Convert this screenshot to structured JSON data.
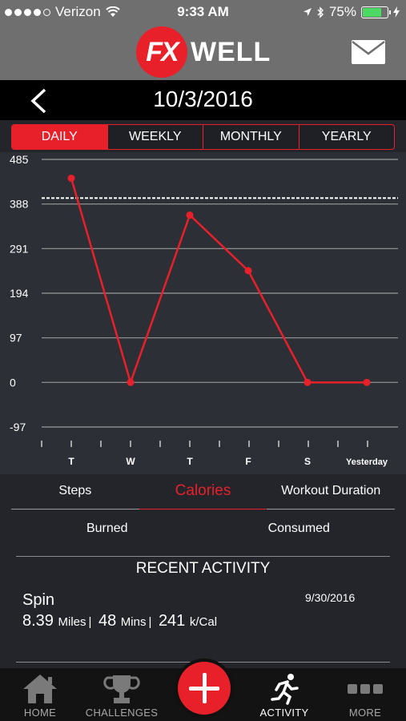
{
  "status_bar": {
    "carrier": "Verizon",
    "time": "9:33 AM",
    "battery": "75%",
    "battery_level": 0.75,
    "signal_bars": 4
  },
  "header": {
    "logo_fx": "FX",
    "logo_well": "WELL",
    "date": "10/3/2016"
  },
  "period_tabs": [
    {
      "label": "DAILY",
      "active": true
    },
    {
      "label": "WEEKLY",
      "active": false
    },
    {
      "label": "MONTHLY",
      "active": false
    },
    {
      "label": "YEARLY",
      "active": false
    }
  ],
  "chart_data": {
    "type": "line",
    "categories": [
      "T",
      "W",
      "T",
      "F",
      "S",
      "Yesterday"
    ],
    "values": [
      444,
      0,
      364,
      243,
      0,
      0
    ],
    "y_ticks": [
      "485",
      "388",
      "291",
      "194",
      "97",
      "0",
      "-97"
    ],
    "y_tick_values": [
      485,
      388,
      291,
      194,
      97,
      0,
      -97
    ],
    "ylim": [
      -97,
      485
    ],
    "target_line": 401,
    "grid": true,
    "colors": {
      "line": "#e8202a",
      "grid": "#9a9a9a",
      "target": "#ffffff",
      "background": "#2d2f36"
    }
  },
  "metrics": [
    {
      "label": "Steps",
      "active": false
    },
    {
      "label": "Calories",
      "active": true
    },
    {
      "label": "Workout Duration",
      "active": false
    }
  ],
  "sub_tabs": [
    "Burned",
    "Consumed"
  ],
  "recent_activity": {
    "title": "RECENT ACTIVITY",
    "name": "Spin",
    "date": "9/30/2016",
    "distance": "8.39",
    "distance_unit": "Miles",
    "duration": "48",
    "duration_unit": "Mins",
    "calories": "241",
    "calories_unit": "k/Cal",
    "separator": "|"
  },
  "tab_bar": [
    {
      "label": "HOME",
      "icon": "home-icon",
      "active": false
    },
    {
      "label": "CHALLENGES",
      "icon": "trophy-icon",
      "active": false
    },
    {
      "label": "ACTIVITY",
      "icon": "runner-icon",
      "active": true
    },
    {
      "label": "MORE",
      "icon": "more-icon",
      "active": false
    }
  ],
  "accent_color": "#e8202a"
}
